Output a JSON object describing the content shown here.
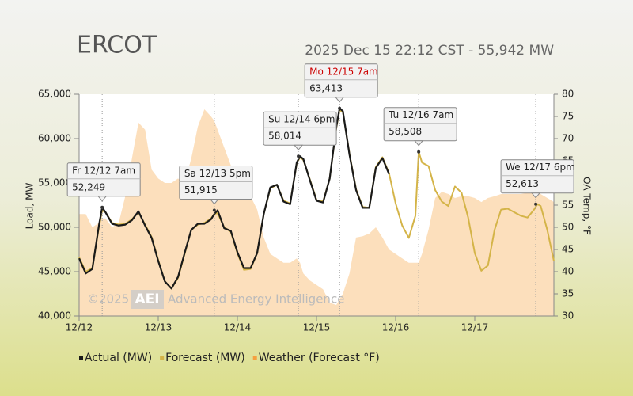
{
  "chart_data": {
    "type": "line",
    "title": "ERCOT",
    "subtitle": "2025 Dec 15 22:12 CST - 55,942 MW",
    "y_label": "Load, MW",
    "y2_label": "OA Temp, °F",
    "watermark": {
      "copyright": "©2025",
      "logo": "AEI",
      "text": "Advanced Energy Intelligence"
    },
    "xlim": [
      0,
      144
    ],
    "xticks": [
      {
        "value": 0,
        "label": "12/12"
      },
      {
        "value": 24,
        "label": "12/13"
      },
      {
        "value": 48,
        "label": "12/14"
      },
      {
        "value": 72,
        "label": "12/15"
      },
      {
        "value": 96,
        "label": "12/16"
      },
      {
        "value": 120,
        "label": "12/17"
      }
    ],
    "ylim": [
      40000,
      65000
    ],
    "yticks": [
      {
        "value": 40000,
        "label": "40,000"
      },
      {
        "value": 45000,
        "label": "45,000"
      },
      {
        "value": 50000,
        "label": "50,000"
      },
      {
        "value": 55000,
        "label": "55,000"
      },
      {
        "value": 60000,
        "label": "60,000"
      },
      {
        "value": 65000,
        "label": "65,000"
      }
    ],
    "y2lim": [
      30,
      80
    ],
    "y2ticks": [
      30,
      35,
      40,
      45,
      50,
      55,
      60,
      65,
      70,
      75,
      80
    ],
    "legend": "bottom",
    "x": [
      0,
      2,
      4,
      6,
      7,
      8,
      10,
      12,
      14,
      16,
      18,
      20,
      22,
      24,
      26,
      28,
      30,
      32,
      34,
      36,
      38,
      40,
      41,
      42,
      44,
      46,
      48,
      50,
      52,
      54,
      56,
      58,
      60,
      62,
      64,
      66,
      67,
      68,
      70,
      72,
      74,
      76,
      78,
      79,
      80,
      82,
      84,
      86,
      88,
      90,
      92,
      94,
      96,
      98,
      100,
      102,
      103,
      104,
      106,
      108,
      110,
      112,
      114,
      116,
      118,
      120,
      122,
      124,
      126,
      128,
      130,
      132,
      134,
      136,
      138,
      139,
      140,
      142,
      144
    ],
    "series": [
      {
        "name": "Weather (Forecast °F)",
        "color": "#f5a040",
        "fill": "#fcd9b0",
        "axis": "y2",
        "area": true,
        "values": [
          53,
          53,
          50,
          51,
          52,
          52,
          50,
          51,
          57,
          65.5,
          73.6,
          72,
          63,
          61,
          60,
          60,
          61,
          60,
          65.5,
          72.7,
          76.6,
          75,
          74,
          72,
          68,
          64,
          61,
          58,
          57,
          54,
          47.7,
          44,
          43,
          42,
          42,
          43,
          42,
          39.6,
          38,
          37,
          36,
          33,
          32.5,
          33.8,
          35,
          39.6,
          47.7,
          48,
          48.6,
          50,
          47.7,
          45,
          44,
          43,
          42,
          42,
          42,
          44,
          49.5,
          56.6,
          58,
          57.5,
          56.6,
          57,
          57,
          56.6,
          55.7,
          56.6,
          57,
          57.5,
          57.5,
          57.5,
          57.5,
          57.8,
          58,
          58,
          57.5,
          56.6,
          55.7
        ]
      },
      {
        "name": "Forecast (MW)",
        "color": "#d4b448",
        "values": [
          46600,
          45000,
          45400,
          50000,
          51900,
          51700,
          50500,
          50300,
          50400,
          50900,
          51700,
          50300,
          48900,
          46300,
          43900,
          43100,
          44300,
          47000,
          49700,
          50300,
          50500,
          51000,
          51500,
          51600,
          50000,
          49500,
          47100,
          45200,
          45300,
          47100,
          51500,
          54400,
          54800,
          53000,
          52700,
          57200,
          57900,
          57600,
          55400,
          53100,
          52900,
          55500,
          61200,
          63200,
          63000,
          58300,
          54300,
          52300,
          52200,
          56800,
          57900,
          56100,
          52700,
          50200,
          48800,
          51300,
          58508,
          57300,
          56900,
          54200,
          52900,
          52400,
          54600,
          53900,
          51100,
          47100,
          45100,
          45700,
          49700,
          52000,
          52100,
          51700,
          51300,
          51100,
          52000,
          52613,
          52400,
          49700,
          46200
        ]
      },
      {
        "name": "Actual (MW)",
        "color": "#1a1a1a",
        "values": [
          46500,
          44800,
          45300,
          50200,
          52249,
          51700,
          50400,
          50200,
          50300,
          50800,
          51800,
          50200,
          48800,
          46200,
          43900,
          43100,
          44400,
          47100,
          49700,
          50400,
          50400,
          50900,
          51500,
          51915,
          49900,
          49600,
          47200,
          45400,
          45400,
          47100,
          51500,
          54500,
          54800,
          52900,
          52600,
          57300,
          58014,
          57700,
          55300,
          53000,
          52800,
          55500,
          61300,
          63413,
          63100,
          58200,
          54200,
          52200,
          52200,
          56700,
          57800,
          56000,
          null,
          null,
          null,
          null,
          null,
          null,
          null,
          null,
          null,
          null,
          null,
          null,
          null,
          null,
          null,
          null,
          null,
          null,
          null,
          null,
          null,
          null,
          null,
          null,
          null,
          null,
          null
        ]
      }
    ],
    "annotations": [
      {
        "label": "Fr 12/12 7am",
        "x": 7,
        "value": 52249,
        "value_label": "52,249"
      },
      {
        "label": "Sa 12/13 5pm",
        "x": 41,
        "value": 51915,
        "value_label": "51,915"
      },
      {
        "label": "Su 12/14 6pm",
        "x": 66.5,
        "value": 58014,
        "value_label": "58,014"
      },
      {
        "label": "Mo 12/15 7am",
        "x": 79,
        "value": 63413,
        "value_label": "63,413",
        "label_color": "#cc0000"
      },
      {
        "label": "Tu 12/16 7am",
        "x": 103,
        "value": 58508,
        "value_label": "58,508"
      },
      {
        "label": "We 12/17 6pm",
        "x": 138.5,
        "value": 52613,
        "value_label": "52,613"
      }
    ]
  }
}
